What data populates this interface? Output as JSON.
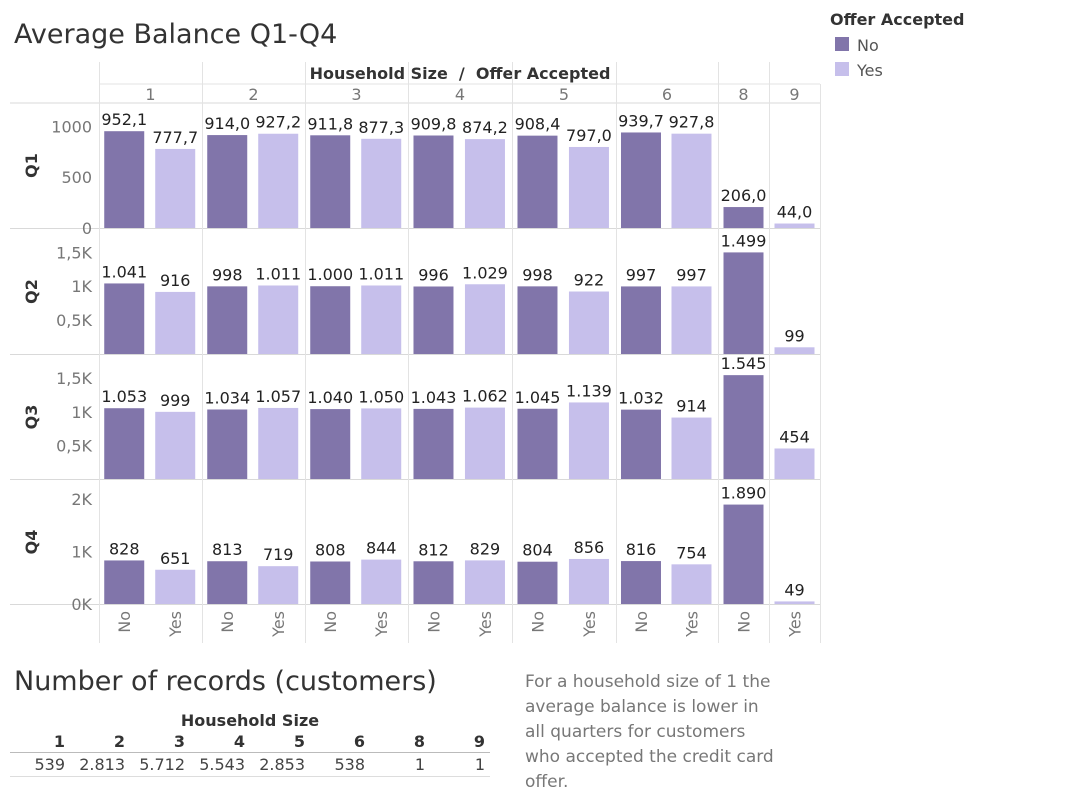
{
  "chart_data": {
    "type": "bar",
    "title": "Average Balance Q1-Q4",
    "column_header": "Household Size  /  Offer Accepted",
    "household_sizes": [
      "1",
      "2",
      "3",
      "4",
      "5",
      "6",
      "8",
      "9"
    ],
    "rows": [
      {
        "name": "Q1",
        "ylim": [
          0,
          1200
        ],
        "ticks": [
          {
            "v": 0,
            "label": "0"
          },
          {
            "v": 500,
            "label": "500"
          },
          {
            "v": 1000,
            "label": "1000"
          }
        ],
        "bars": [
          {
            "size": "1",
            "offer": "No",
            "value": 952.1,
            "label": "952,1"
          },
          {
            "size": "1",
            "offer": "Yes",
            "value": 777.7,
            "label": "777,7"
          },
          {
            "size": "2",
            "offer": "No",
            "value": 914.0,
            "label": "914,0"
          },
          {
            "size": "2",
            "offer": "Yes",
            "value": 927.2,
            "label": "927,2"
          },
          {
            "size": "3",
            "offer": "No",
            "value": 911.8,
            "label": "911,8"
          },
          {
            "size": "3",
            "offer": "Yes",
            "value": 877.3,
            "label": "877,3"
          },
          {
            "size": "4",
            "offer": "No",
            "value": 909.8,
            "label": "909,8"
          },
          {
            "size": "4",
            "offer": "Yes",
            "value": 874.2,
            "label": "874,2"
          },
          {
            "size": "5",
            "offer": "No",
            "value": 908.4,
            "label": "908,4"
          },
          {
            "size": "5",
            "offer": "Yes",
            "value": 797.0,
            "label": "797,0"
          },
          {
            "size": "6",
            "offer": "No",
            "value": 939.7,
            "label": "939,7"
          },
          {
            "size": "6",
            "offer": "Yes",
            "value": 927.8,
            "label": "927,8"
          },
          {
            "size": "8",
            "offer": "No",
            "value": 206.0,
            "label": "206,0"
          },
          {
            "size": "9",
            "offer": "Yes",
            "value": 44.0,
            "label": "44,0"
          }
        ]
      },
      {
        "name": "Q2",
        "ylim": [
          0,
          1800
        ],
        "ticks": [
          {
            "v": 500,
            "label": "0,5K"
          },
          {
            "v": 1000,
            "label": "1K"
          },
          {
            "v": 1500,
            "label": "1,5K"
          }
        ],
        "bars": [
          {
            "size": "1",
            "offer": "No",
            "value": 1041,
            "label": "1.041"
          },
          {
            "size": "1",
            "offer": "Yes",
            "value": 916,
            "label": "916"
          },
          {
            "size": "2",
            "offer": "No",
            "value": 998,
            "label": "998"
          },
          {
            "size": "2",
            "offer": "Yes",
            "value": 1011,
            "label": "1.011"
          },
          {
            "size": "3",
            "offer": "No",
            "value": 1000,
            "label": "1.000"
          },
          {
            "size": "3",
            "offer": "Yes",
            "value": 1011,
            "label": "1.011"
          },
          {
            "size": "4",
            "offer": "No",
            "value": 996,
            "label": "996"
          },
          {
            "size": "4",
            "offer": "Yes",
            "value": 1029,
            "label": "1.029"
          },
          {
            "size": "5",
            "offer": "No",
            "value": 998,
            "label": "998"
          },
          {
            "size": "5",
            "offer": "Yes",
            "value": 922,
            "label": "922"
          },
          {
            "size": "6",
            "offer": "No",
            "value": 997,
            "label": "997"
          },
          {
            "size": "6",
            "offer": "Yes",
            "value": 997,
            "label": "997"
          },
          {
            "size": "8",
            "offer": "No",
            "value": 1499,
            "label": "1.499"
          },
          {
            "size": "9",
            "offer": "Yes",
            "value": 99,
            "label": "99"
          }
        ]
      },
      {
        "name": "Q3",
        "ylim": [
          0,
          1800
        ],
        "ticks": [
          {
            "v": 500,
            "label": "0,5K"
          },
          {
            "v": 1000,
            "label": "1K"
          },
          {
            "v": 1500,
            "label": "1,5K"
          }
        ],
        "bars": [
          {
            "size": "1",
            "offer": "No",
            "value": 1053,
            "label": "1.053"
          },
          {
            "size": "1",
            "offer": "Yes",
            "value": 999,
            "label": "999"
          },
          {
            "size": "2",
            "offer": "No",
            "value": 1034,
            "label": "1.034"
          },
          {
            "size": "2",
            "offer": "Yes",
            "value": 1057,
            "label": "1.057"
          },
          {
            "size": "3",
            "offer": "No",
            "value": 1040,
            "label": "1.040"
          },
          {
            "size": "3",
            "offer": "Yes",
            "value": 1050,
            "label": "1.050"
          },
          {
            "size": "4",
            "offer": "No",
            "value": 1043,
            "label": "1.043"
          },
          {
            "size": "4",
            "offer": "Yes",
            "value": 1062,
            "label": "1.062"
          },
          {
            "size": "5",
            "offer": "No",
            "value": 1045,
            "label": "1.045"
          },
          {
            "size": "5",
            "offer": "Yes",
            "value": 1139,
            "label": "1.139"
          },
          {
            "size": "6",
            "offer": "No",
            "value": 1032,
            "label": "1.032"
          },
          {
            "size": "6",
            "offer": "Yes",
            "value": 914,
            "label": "914"
          },
          {
            "size": "8",
            "offer": "No",
            "value": 1545,
            "label": "1.545"
          },
          {
            "size": "9",
            "offer": "Yes",
            "value": 454,
            "label": "454"
          }
        ]
      },
      {
        "name": "Q4",
        "ylim": [
          0,
          2300
        ],
        "ticks": [
          {
            "v": 0,
            "label": "0K"
          },
          {
            "v": 1000,
            "label": "1K"
          },
          {
            "v": 2000,
            "label": "2K"
          }
        ],
        "bars": [
          {
            "size": "1",
            "offer": "No",
            "value": 828,
            "label": "828"
          },
          {
            "size": "1",
            "offer": "Yes",
            "value": 651,
            "label": "651"
          },
          {
            "size": "2",
            "offer": "No",
            "value": 813,
            "label": "813"
          },
          {
            "size": "2",
            "offer": "Yes",
            "value": 719,
            "label": "719"
          },
          {
            "size": "3",
            "offer": "No",
            "value": 808,
            "label": "808"
          },
          {
            "size": "3",
            "offer": "Yes",
            "value": 844,
            "label": "844"
          },
          {
            "size": "4",
            "offer": "No",
            "value": 812,
            "label": "812"
          },
          {
            "size": "4",
            "offer": "Yes",
            "value": 829,
            "label": "829"
          },
          {
            "size": "5",
            "offer": "No",
            "value": 804,
            "label": "804"
          },
          {
            "size": "5",
            "offer": "Yes",
            "value": 856,
            "label": "856"
          },
          {
            "size": "6",
            "offer": "No",
            "value": 816,
            "label": "816"
          },
          {
            "size": "6",
            "offer": "Yes",
            "value": 754,
            "label": "754"
          },
          {
            "size": "8",
            "offer": "No",
            "value": 1890,
            "label": "1.890"
          },
          {
            "size": "9",
            "offer": "Yes",
            "value": 49,
            "label": "49"
          }
        ]
      }
    ],
    "legend": {
      "title": "Offer Accepted",
      "placement": "top-right",
      "items": [
        {
          "name": "No",
          "color": "#8175aa"
        },
        {
          "name": "Yes",
          "color": "#c6bfeb"
        }
      ]
    },
    "colors": {
      "No": "#8175aa",
      "Yes": "#c6bfeb"
    }
  },
  "records_table": {
    "title": "Number of records (customers)",
    "header": "Household Size",
    "columns": [
      "1",
      "2",
      "3",
      "4",
      "5",
      "6",
      "8",
      "9"
    ],
    "values": [
      "539",
      "2.813",
      "5.712",
      "5.543",
      "2.853",
      "538",
      "1",
      "1"
    ]
  },
  "note": "For a household size of 1 the average balance is lower in all quarters for customers who accepted the credit card offer."
}
